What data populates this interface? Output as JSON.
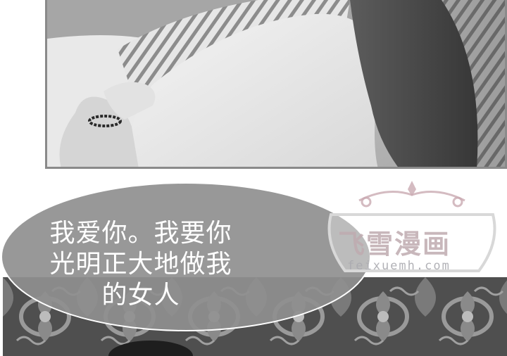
{
  "dialogue": {
    "line1": "我爱你。我要你",
    "line2": "光明正大地做我",
    "line3": "的女人"
  },
  "watermark": {
    "title": "飞雪漫画",
    "url": "feixuemh.com"
  },
  "colors": {
    "bubble": "#8f8f8f",
    "watermark_accent": "#c9aab2"
  }
}
